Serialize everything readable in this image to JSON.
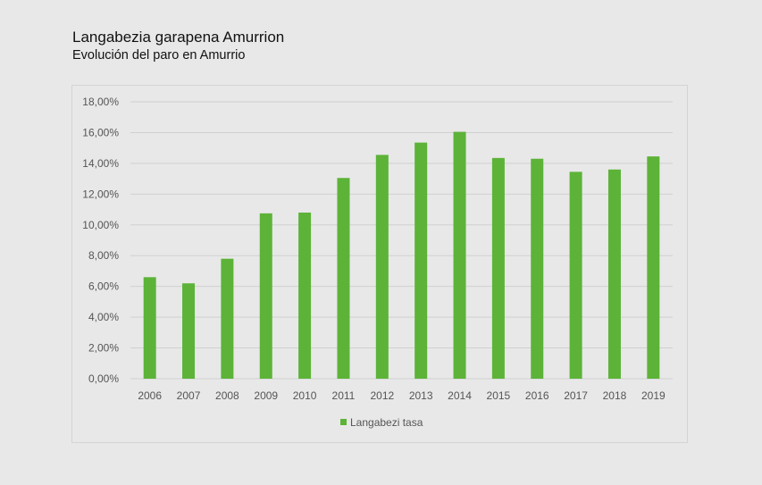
{
  "page": {
    "title": "Langabezia garapena Amurrion",
    "subtitle": "Evolución del paro en Amurrio"
  },
  "colors": {
    "bar": "#5cb338",
    "grid": "#d0d0d0",
    "background": "#e8e8e8"
  },
  "chart_data": {
    "type": "bar",
    "title": "Langabezia garapena Amurrion",
    "subtitle": "Evolución del paro en Amurrio",
    "categories": [
      "2006",
      "2007",
      "2008",
      "2009",
      "2010",
      "2011",
      "2012",
      "2013",
      "2014",
      "2015",
      "2016",
      "2017",
      "2018",
      "2019"
    ],
    "series": [
      {
        "name": "Langabezi tasa",
        "values": [
          6.6,
          6.2,
          7.8,
          10.75,
          10.8,
          13.05,
          14.55,
          15.35,
          16.05,
          14.35,
          14.3,
          13.45,
          13.6,
          14.45
        ]
      }
    ],
    "ylim": [
      0,
      18
    ],
    "yticks": [
      0,
      2,
      4,
      6,
      8,
      10,
      12,
      14,
      16,
      18
    ],
    "ytick_labels": [
      "0,00%",
      "2,00%",
      "4,00%",
      "6,00%",
      "8,00%",
      "10,00%",
      "12,00%",
      "14,00%",
      "16,00%",
      "18,00%"
    ],
    "grid": true,
    "legend": "bottom"
  }
}
